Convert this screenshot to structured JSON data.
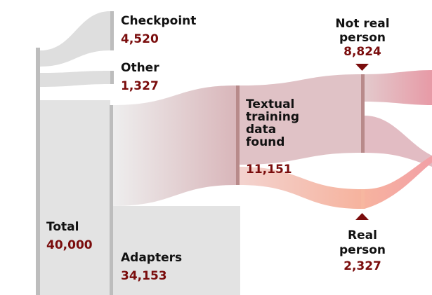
{
  "nodes": {
    "total": {
      "label": "Total",
      "value": "40,000"
    },
    "checkpoint": {
      "label": "Checkpoint",
      "value": "4,520"
    },
    "other": {
      "label": "Other",
      "value": "1,327"
    },
    "adapters": {
      "label": "Adapters",
      "value": "34,153"
    },
    "textual": {
      "label_lines": [
        "Textual",
        "training",
        "data",
        "found"
      ],
      "value": "11,151"
    },
    "not_real": {
      "label_lines": [
        "Not real",
        "person"
      ],
      "value": "8,824"
    },
    "real": {
      "label_lines": [
        "Real",
        "person"
      ],
      "value": "2,327"
    }
  },
  "colors": {
    "grey_node": "#bdbdbd",
    "grey_flow": "#dedede",
    "red_node": "#b88a8a",
    "red_flow": "#d9b0b6",
    "real_node": "#f7b7a0",
    "real_flow": "#f8c2b4",
    "not_real_flow": "#e5a6b0",
    "value_text": "#7a0c0c",
    "marker": "#7a0c0c"
  }
}
